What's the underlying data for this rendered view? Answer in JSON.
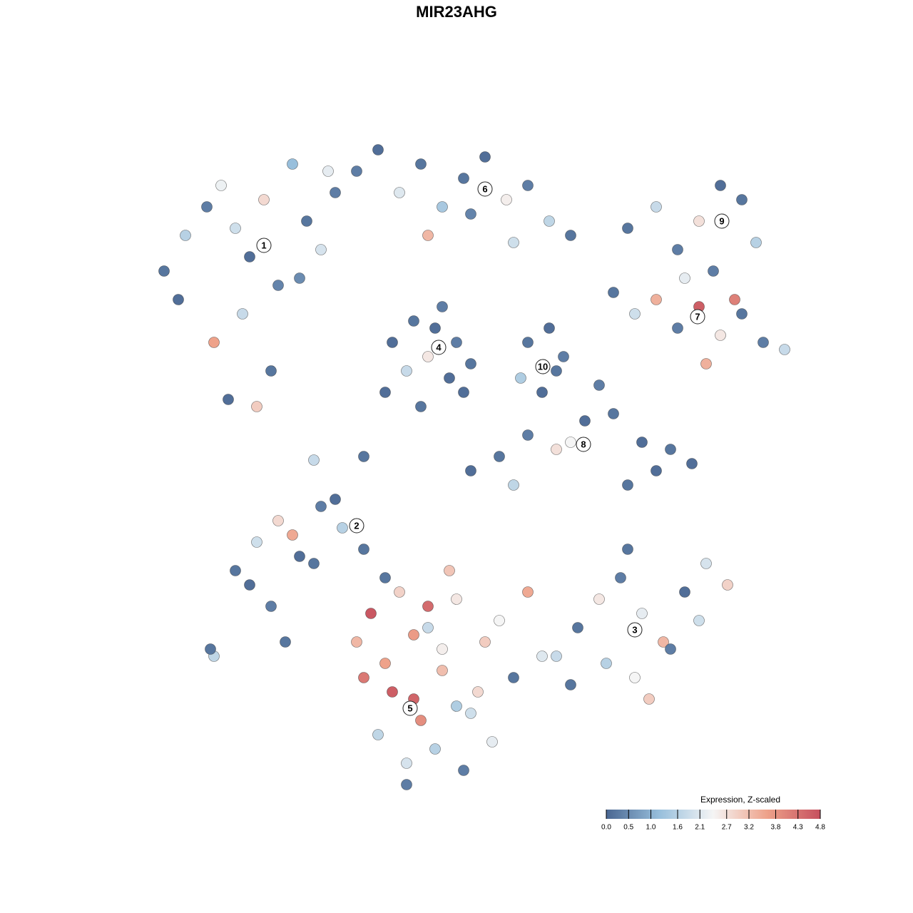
{
  "chart_data": {
    "type": "scatter",
    "title": "MIR23AHG",
    "xlim": [
      0,
      128
    ],
    "ylim": [
      0,
      128
    ],
    "x": [
      23,
      26,
      29,
      31,
      33,
      35,
      37,
      39,
      41,
      43,
      45,
      47,
      25,
      30,
      34,
      38,
      42,
      46,
      32,
      36,
      50,
      53,
      56,
      59,
      62,
      65,
      68,
      71,
      74,
      77,
      80,
      60,
      66,
      72,
      55,
      58,
      61,
      64,
      57,
      60,
      63,
      66,
      54,
      59,
      62,
      65,
      74,
      77,
      79,
      73,
      76,
      78,
      88,
      92,
      95,
      98,
      101,
      104,
      106,
      100,
      86,
      89,
      92,
      95,
      98,
      101,
      104,
      107,
      110,
      96,
      99,
      103,
      66,
      70,
      74,
      78,
      82,
      86,
      90,
      94,
      97,
      84,
      88,
      92,
      72,
      80,
      33,
      36,
      39,
      42,
      45,
      48,
      51,
      35,
      38,
      41,
      44,
      47,
      30,
      40,
      78,
      81,
      84,
      87,
      90,
      93,
      96,
      99,
      102,
      80,
      85,
      89,
      94,
      98,
      88,
      91,
      50,
      52,
      54,
      56,
      58,
      60,
      62,
      64,
      66,
      68,
      70,
      72,
      74,
      76,
      53,
      55,
      57,
      59,
      61,
      63,
      65,
      67,
      69,
      51,
      54,
      58,
      62,
      57,
      60,
      64,
      44,
      51,
      29.5
    ],
    "y": [
      90,
      95,
      99,
      102,
      96,
      92,
      100,
      88,
      105,
      97,
      93,
      101,
      86,
      80,
      84,
      76,
      89,
      104,
      72,
      71,
      104,
      107,
      101,
      105,
      99,
      103,
      106,
      100,
      102,
      97,
      95,
      95,
      98,
      94,
      80,
      83,
      82,
      80,
      76,
      78,
      75,
      77,
      73,
      71,
      85,
      73,
      80,
      82,
      78,
      75,
      73,
      76,
      96,
      99,
      93,
      97,
      102,
      100,
      94,
      90,
      87,
      84,
      86,
      82,
      85,
      81,
      84,
      80,
      79,
      89,
      77,
      86,
      62,
      64,
      67,
      65,
      69,
      70,
      66,
      65,
      63,
      74,
      60,
      62,
      60,
      66,
      48,
      52,
      55,
      50,
      57,
      54,
      51,
      46,
      43,
      53,
      49,
      58,
      36,
      38,
      36,
      40,
      44,
      47,
      42,
      38,
      45,
      49,
      46,
      32,
      35,
      33,
      37,
      41,
      51,
      30,
      38,
      42,
      35,
      45,
      30,
      40,
      34,
      44,
      28,
      38,
      41,
      33,
      45,
      36,
      25,
      31,
      21,
      27,
      23,
      48,
      20,
      31,
      24,
      33,
      47,
      39,
      37,
      18,
      43,
      29,
      63.5,
      64,
      37
    ],
    "values": [
      0.2,
      1.6,
      0.3,
      2.3,
      1.9,
      0.1,
      2.8,
      0.4,
      1.2,
      0.2,
      2.0,
      0.3,
      0.1,
      3.6,
      1.8,
      0.2,
      0.5,
      2.2,
      0.1,
      3.0,
      0.3,
      0.1,
      2.1,
      0.2,
      1.4,
      0.2,
      0.1,
      2.5,
      0.3,
      1.7,
      0.2,
      3.3,
      0.4,
      1.9,
      0.1,
      0.2,
      0.1,
      0.3,
      1.8,
      2.6,
      0.1,
      0.2,
      0.1,
      0.2,
      0.3,
      0.1,
      0.2,
      0.1,
      0.3,
      1.5,
      0.1,
      0.2,
      0.2,
      1.8,
      0.3,
      2.7,
      0.1,
      0.2,
      1.6,
      0.3,
      0.2,
      1.9,
      3.4,
      0.3,
      4.6,
      2.6,
      0.2,
      0.3,
      1.8,
      2.2,
      3.4,
      4.1,
      0.1,
      0.2,
      0.3,
      2.7,
      0.1,
      0.2,
      0.1,
      0.2,
      0.1,
      0.3,
      0.2,
      0.1,
      1.7,
      2.4,
      0.2,
      1.9,
      2.8,
      0.1,
      0.3,
      1.6,
      0.2,
      0.1,
      0.3,
      3.5,
      0.2,
      0.1,
      1.7,
      0.2,
      1.8,
      0.2,
      2.6,
      0.3,
      2.2,
      3.3,
      0.1,
      2.0,
      2.9,
      0.2,
      1.6,
      2.4,
      0.3,
      1.9,
      0.2,
      3.0,
      3.3,
      4.7,
      3.6,
      2.9,
      4.5,
      1.8,
      3.2,
      2.6,
      1.9,
      3.0,
      2.4,
      0.2,
      3.5,
      2.1,
      1.7,
      4.6,
      2.0,
      3.9,
      1.6,
      3.1,
      0.3,
      2.8,
      2.2,
      4.2,
      0.2,
      3.7,
      2.5,
      0.3,
      4.4,
      1.5,
      1.8,
      0.2,
      0.2
    ],
    "clusters": [
      {
        "label": "1",
        "x": 37,
        "y": 93.6
      },
      {
        "label": "2",
        "x": 50,
        "y": 54.3
      },
      {
        "label": "3",
        "x": 89,
        "y": 39.7
      },
      {
        "label": "4",
        "x": 61.5,
        "y": 79.3
      },
      {
        "label": "5",
        "x": 57.5,
        "y": 28.7
      },
      {
        "label": "6",
        "x": 68,
        "y": 101.5
      },
      {
        "label": "7",
        "x": 97.8,
        "y": 83.6
      },
      {
        "label": "8",
        "x": 81.8,
        "y": 65.7
      },
      {
        "label": "9",
        "x": 101.2,
        "y": 97
      },
      {
        "label": "10",
        "x": 76.1,
        "y": 76.6
      }
    ],
    "colorbar": {
      "title": "Expression, Z-scaled",
      "lim": [
        0,
        4.8
      ],
      "colors": [
        "#4a6792",
        "#98bfdc",
        "#f5f5f5",
        "#eea28a",
        "#c6505e"
      ],
      "ticks": [
        {
          "value": 0,
          "label": "0.0"
        },
        0.5,
        {
          "value": 1,
          "label": "1.0"
        },
        1.6,
        2.1,
        2.7,
        3.2,
        3.8,
        4.3,
        4.8
      ]
    }
  }
}
